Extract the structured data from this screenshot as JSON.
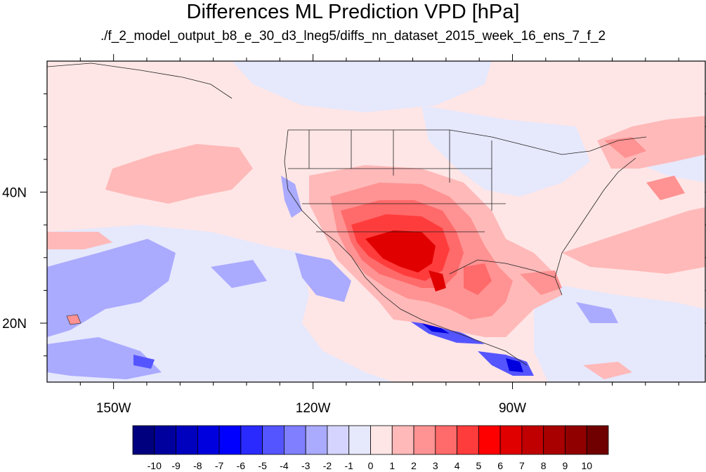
{
  "title": "Differences ML Prediction VPD [hPa]",
  "subtitle": "./f_2_model_output_b8_e_30_d3_lneg5/diffs_nn_dataset_2015_week_16_ens_7_f_2",
  "map": {
    "lon_range": [
      -160,
      -61
    ],
    "lat_range": [
      11,
      60
    ],
    "lon_ticks": [
      {
        "value": -150,
        "label": "150W"
      },
      {
        "value": -120,
        "label": "120W"
      },
      {
        "value": -90,
        "label": "90W"
      }
    ],
    "lat_ticks": [
      {
        "value": 20,
        "label": "20N"
      },
      {
        "value": 40,
        "label": "40N"
      }
    ]
  },
  "colorbar": {
    "levels": [
      "-10",
      "-9",
      "-8",
      "-7",
      "-6",
      "-5",
      "-4",
      "-3",
      "-2",
      "-1",
      "0",
      "1",
      "2",
      "3",
      "4",
      "5",
      "6",
      "7",
      "8",
      "9",
      "10"
    ],
    "colors": [
      "#00007f",
      "#00009f",
      "#0000bf",
      "#0000df",
      "#0000ff",
      "#2a2aff",
      "#5555ff",
      "#7f7fff",
      "#aaaaff",
      "#d4d4ff",
      "#e6e8fc",
      "#ffe6e6",
      "#ffb9b9",
      "#ff9292",
      "#ff6a6a",
      "#ff3c3c",
      "#ff0000",
      "#e00000",
      "#c00000",
      "#a80000",
      "#900000",
      "#700000"
    ]
  }
}
